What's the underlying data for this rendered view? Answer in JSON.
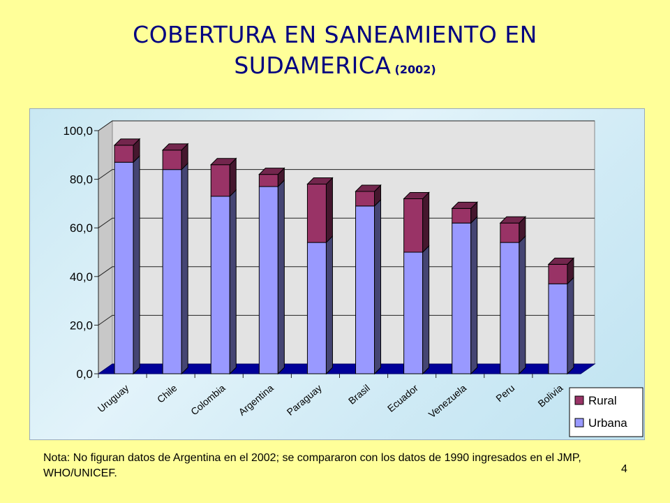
{
  "title": {
    "line1": "COBERTURA EN SANEAMIENTO EN",
    "line2": "SUDAMERICA",
    "year": "(2002)"
  },
  "chart_data": {
    "type": "bar",
    "stacked": true,
    "categories": [
      "Uruguay",
      "Chile",
      "Colombia",
      "Argentina",
      "Paraguay",
      "Brasil",
      "Ecuador",
      "Venezuela",
      "Peru",
      "Bolivia"
    ],
    "series": [
      {
        "name": "Urbana",
        "color": "#9999ff",
        "values": [
          87,
          84,
          73,
          77,
          54,
          69,
          50,
          62,
          54,
          37
        ]
      },
      {
        "name": "Rural",
        "color": "#993366",
        "values": [
          7,
          8,
          13,
          5,
          24,
          6,
          22,
          6,
          8,
          8
        ]
      }
    ],
    "ylim": [
      0,
      100
    ],
    "yticks": [
      "0,0",
      "20,0",
      "40,0",
      "60,0",
      "80,0",
      "100,0"
    ],
    "grid": true,
    "legend": "bottom-right",
    "legend_entries": [
      "Rural",
      "Urbana"
    ]
  },
  "note": "Nota: No figuran datos de Argentina en el 2002; se compararon con los datos de 1990 ingresados en el JMP, WHO/UNICEF.",
  "page_number": "4"
}
